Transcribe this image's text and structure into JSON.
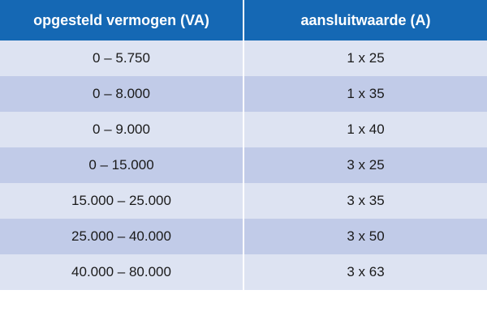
{
  "colors": {
    "header_bg": "#1568b4",
    "row_light": "#dde3f2",
    "row_dark": "#c1cbe8"
  },
  "table": {
    "headers": [
      "opgesteld vermogen (VA)",
      "aansluitwaarde (A)"
    ],
    "rows": [
      [
        "0 – 5.750",
        "1 x 25"
      ],
      [
        "0 – 8.000",
        "1 x 35"
      ],
      [
        "0 – 9.000",
        "1 x 40"
      ],
      [
        "0 – 15.000",
        "3 x 25"
      ],
      [
        "15.000 – 25.000",
        "3 x 35"
      ],
      [
        "25.000 – 40.000",
        "3 x 50"
      ],
      [
        "40.000 – 80.000",
        "3 x 63"
      ]
    ]
  }
}
